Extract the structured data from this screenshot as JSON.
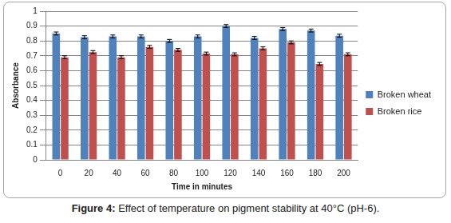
{
  "chart_data": {
    "type": "bar",
    "title": "Figure 4: Effect of temperature on pigment stability at 40°C (pH-6).",
    "x_label": "Time in minutes",
    "y_label": "Absorbance",
    "categories": [
      "0",
      "20",
      "40",
      "60",
      "80",
      "100",
      "120",
      "140",
      "160",
      "180",
      "200"
    ],
    "series": [
      {
        "name": "Broken wheat",
        "color": "#4f81bd",
        "values": [
          0.85,
          0.825,
          0.83,
          0.83,
          0.8,
          0.83,
          0.9,
          0.82,
          0.88,
          0.87,
          0.835
        ],
        "errors": [
          0.01,
          0.01,
          0.01,
          0.01,
          0.01,
          0.01,
          0.01,
          0.01,
          0.01,
          0.01,
          0.01
        ]
      },
      {
        "name": "Broken rice",
        "color": "#c0504d",
        "values": [
          0.69,
          0.725,
          0.69,
          0.76,
          0.74,
          0.715,
          0.71,
          0.75,
          0.79,
          0.645,
          0.71
        ],
        "errors": [
          0.01,
          0.01,
          0.01,
          0.01,
          0.01,
          0.01,
          0.01,
          0.01,
          0.01,
          0.01,
          0.01
        ]
      }
    ],
    "ylim": [
      0,
      1
    ],
    "yticks": [
      0,
      0.1,
      0.2,
      0.3,
      0.4,
      0.5,
      0.6,
      0.7,
      0.8,
      0.9,
      1
    ],
    "grid": true,
    "legend": "right"
  }
}
